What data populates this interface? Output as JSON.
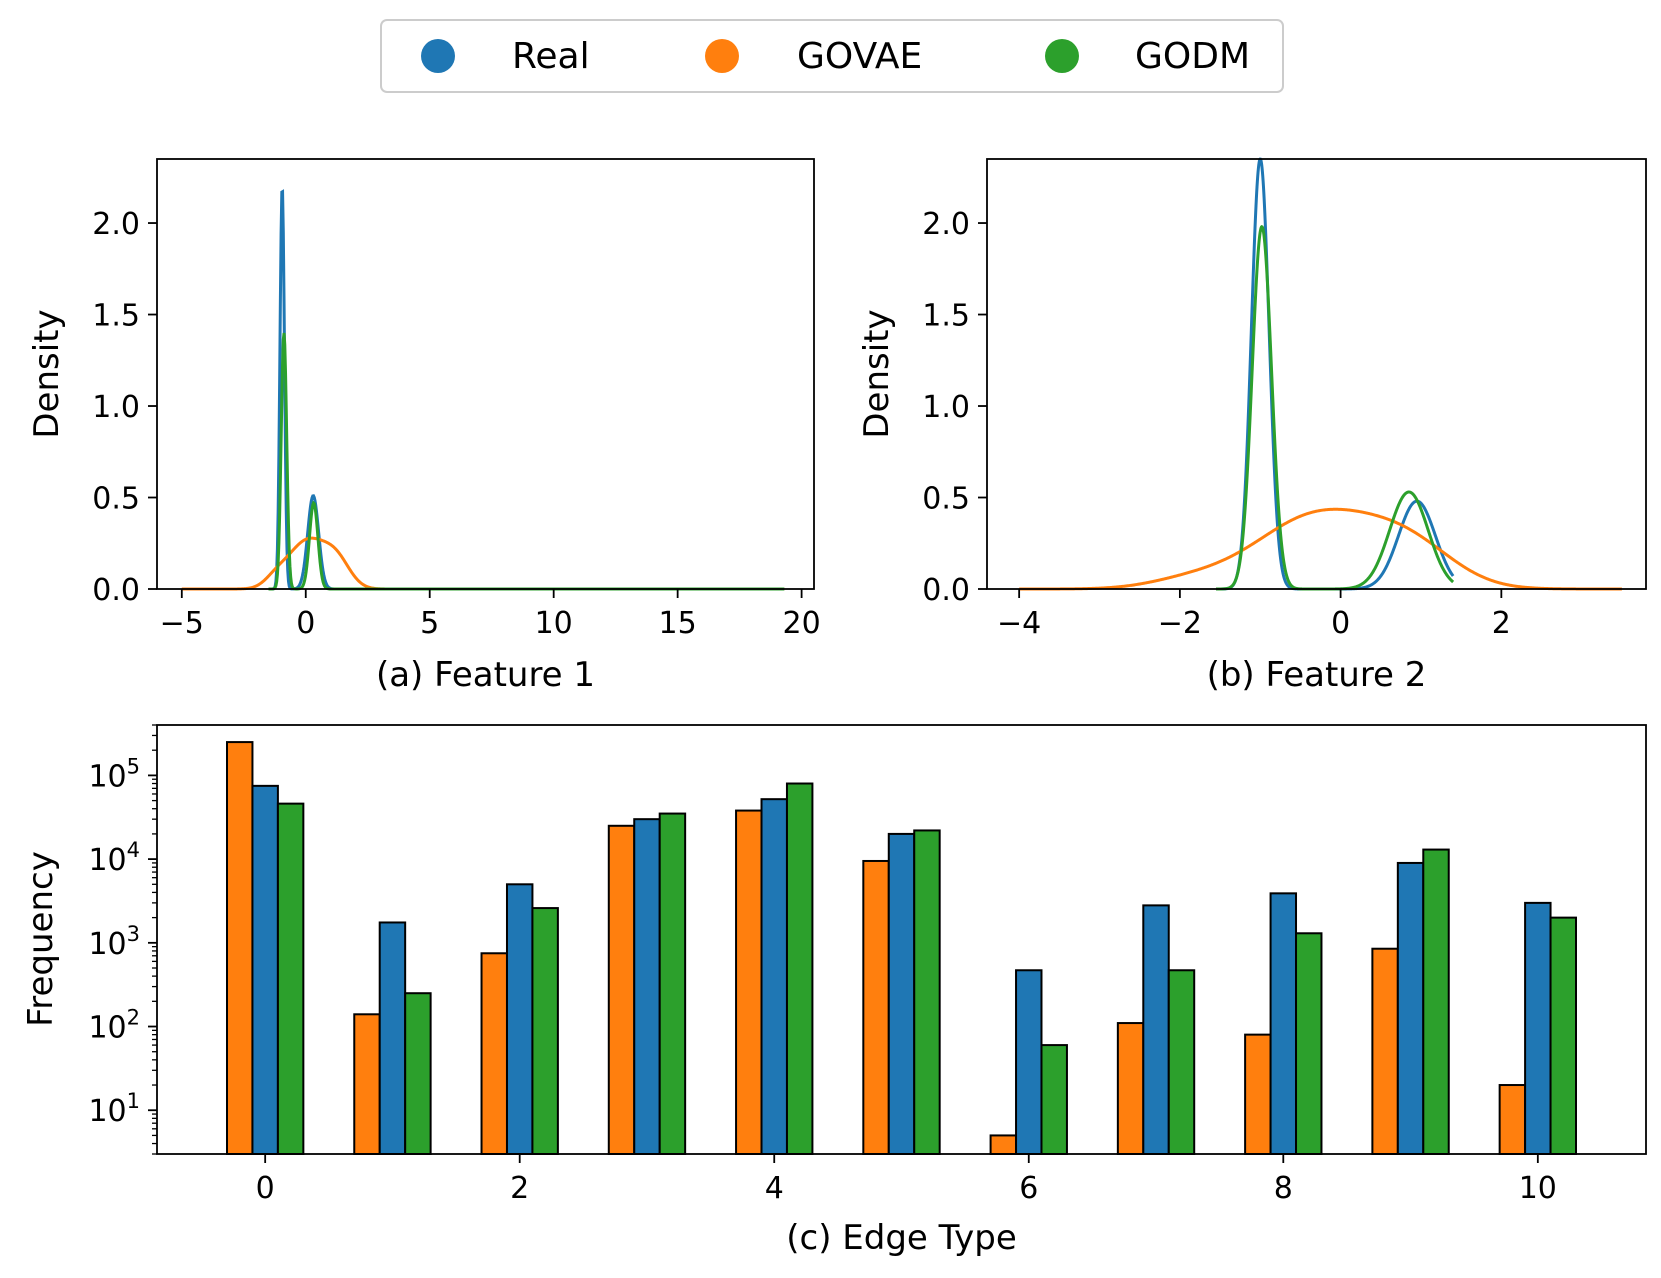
{
  "legend": {
    "items": [
      {
        "label": "Real",
        "color": "#1f77b4"
      },
      {
        "label": "GOVAE",
        "color": "#ff7f0e"
      },
      {
        "label": "GODM",
        "color": "#2ca02c"
      }
    ]
  },
  "chart_data": [
    {
      "type": "line",
      "xlabel": "(a) Feature 1",
      "ylabel": "Density",
      "xlim": [
        -6,
        20.5
      ],
      "ylim": [
        0,
        2.35
      ],
      "xticks": [
        -5,
        0,
        5,
        10,
        15,
        20
      ],
      "xtick_labels": [
        "−5",
        "0",
        "5",
        "10",
        "15",
        "20"
      ],
      "yticks": [
        0,
        0.5,
        1,
        1.5,
        2
      ],
      "ytick_labels": [
        "0.0",
        "0.5",
        "1.0",
        "1.5",
        "2.0"
      ],
      "grid": false,
      "series": [
        {
          "name": "Real",
          "color": "#1f77b4",
          "x_range": [
            -1.5,
            19.3
          ],
          "components": [
            {
              "mu": -0.95,
              "sigma": 0.09,
              "amp": 2.2
            },
            {
              "mu": 0.3,
              "sigma": 0.22,
              "amp": 0.51
            }
          ]
        },
        {
          "name": "GOVAE",
          "color": "#ff7f0e",
          "x_range": [
            -5.0,
            19.3
          ],
          "components": [
            {
              "mu": 0.05,
              "sigma": 0.75,
              "amp": 0.26
            },
            {
              "mu": 1.25,
              "sigma": 0.55,
              "amp": 0.14
            },
            {
              "mu": -1.2,
              "sigma": 0.45,
              "amp": 0.05
            }
          ]
        },
        {
          "name": "GODM",
          "color": "#2ca02c",
          "x_range": [
            -1.5,
            19.3
          ],
          "components": [
            {
              "mu": -0.88,
              "sigma": 0.11,
              "amp": 1.4
            },
            {
              "mu": 0.32,
              "sigma": 0.17,
              "amp": 0.47
            }
          ]
        }
      ]
    },
    {
      "type": "line",
      "xlabel": "(b) Feature 2",
      "ylabel": "Density",
      "xlim": [
        -4.4,
        3.8
      ],
      "ylim": [
        0,
        2.35
      ],
      "xticks": [
        -4,
        -2,
        0,
        2
      ],
      "xtick_labels": [
        "−4",
        "−2",
        "0",
        "2"
      ],
      "yticks": [
        0,
        0.5,
        1,
        1.5,
        2
      ],
      "ytick_labels": [
        "0.0",
        "0.5",
        "1.0",
        "1.5",
        "2.0"
      ],
      "grid": false,
      "series": [
        {
          "name": "Real",
          "color": "#1f77b4",
          "x_range": [
            -1.55,
            1.4
          ],
          "components": [
            {
              "mu": -1.0,
              "sigma": 0.11,
              "amp": 2.35
            },
            {
              "mu": 0.95,
              "sigma": 0.23,
              "amp": 0.48
            }
          ]
        },
        {
          "name": "GOVAE",
          "color": "#ff7f0e",
          "x_range": [
            -4.0,
            3.5
          ],
          "components": [
            {
              "mu": -0.25,
              "sigma": 0.8,
              "amp": 0.41
            },
            {
              "mu": 0.9,
              "sigma": 0.55,
              "amp": 0.17
            },
            {
              "mu": -1.9,
              "sigma": 0.5,
              "amp": 0.04
            }
          ]
        },
        {
          "name": "GODM",
          "color": "#2ca02c",
          "x_range": [
            -1.55,
            1.4
          ],
          "components": [
            {
              "mu": -0.98,
              "sigma": 0.12,
              "amp": 1.98
            },
            {
              "mu": 0.85,
              "sigma": 0.24,
              "amp": 0.53
            }
          ]
        }
      ]
    },
    {
      "type": "bar",
      "xlabel": "(c) Edge Type",
      "ylabel": "Frequency",
      "log_y": true,
      "ylim": [
        3,
        400000
      ],
      "xlim": [
        -0.85,
        10.85
      ],
      "categories": [
        0,
        1,
        2,
        3,
        4,
        5,
        6,
        7,
        8,
        9,
        10
      ],
      "xticks": [
        0,
        2,
        4,
        6,
        8,
        10
      ],
      "xtick_labels": [
        "0",
        "2",
        "4",
        "6",
        "8",
        "10"
      ],
      "ytick_exponents": [
        1,
        2,
        3,
        4,
        5
      ],
      "ytick_base": "10",
      "grid": false,
      "series": [
        {
          "name": "GOVAE",
          "color": "#ff7f0e",
          "values": [
            250000,
            140,
            750,
            25000,
            38000,
            9500,
            5,
            110,
            80,
            850,
            20
          ]
        },
        {
          "name": "Real",
          "color": "#1f77b4",
          "values": [
            75000,
            1750,
            5000,
            30000,
            52000,
            20000,
            470,
            2800,
            3900,
            9000,
            3000
          ]
        },
        {
          "name": "GODM",
          "color": "#2ca02c",
          "values": [
            46000,
            250,
            2600,
            35000,
            80000,
            22000,
            60,
            470,
            1300,
            13000,
            2000
          ]
        }
      ]
    }
  ]
}
